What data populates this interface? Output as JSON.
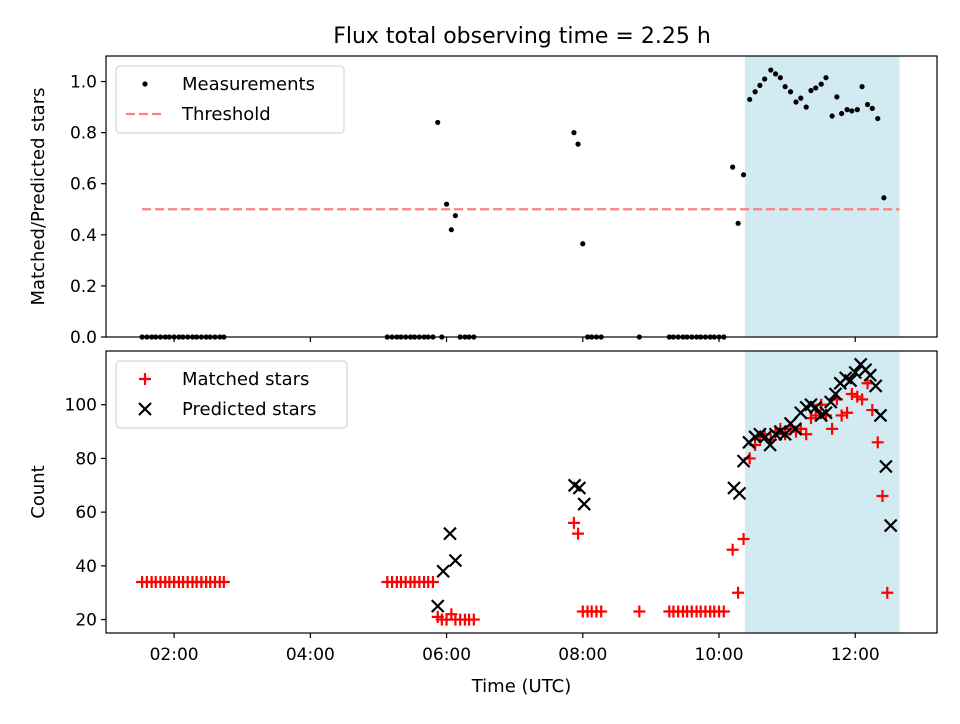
{
  "title": "Flux total observing time = 2.25 h",
  "colors": {
    "highlight": "#add8e6",
    "measurement": "#000000",
    "threshold": "#ff7f7f",
    "matched": "#ff0000",
    "predicted": "#000000"
  },
  "chart_data": [
    {
      "type": "scatter",
      "ylabel": "Matched/Predicted stars",
      "xlim": [
        1.0,
        13.2
      ],
      "ylim": [
        0,
        1.1
      ],
      "yticks": [
        0.0,
        0.2,
        0.4,
        0.6,
        0.8,
        1.0
      ],
      "ytick_labels": [
        "0.0",
        "0.2",
        "0.4",
        "0.6",
        "0.8",
        "1.0"
      ],
      "xticks": [
        2,
        4,
        6,
        8,
        10,
        12
      ],
      "shaded_span": [
        10.38,
        12.65
      ],
      "legend": {
        "placement": "upper left",
        "entries": [
          "Measurements",
          "Threshold"
        ]
      },
      "threshold": {
        "name": "Threshold",
        "value": 0.5,
        "x": [
          1.53,
          12.65
        ]
      },
      "series": [
        {
          "name": "Measurements",
          "marker": "dot",
          "points": [
            [
              1.53,
              0
            ],
            [
              1.6,
              0
            ],
            [
              1.67,
              0
            ],
            [
              1.73,
              0
            ],
            [
              1.8,
              0
            ],
            [
              1.87,
              0
            ],
            [
              1.93,
              0
            ],
            [
              2.0,
              0
            ],
            [
              2.07,
              0
            ],
            [
              2.13,
              0
            ],
            [
              2.2,
              0
            ],
            [
              2.27,
              0
            ],
            [
              2.33,
              0
            ],
            [
              2.4,
              0
            ],
            [
              2.47,
              0
            ],
            [
              2.53,
              0
            ],
            [
              2.6,
              0
            ],
            [
              2.67,
              0
            ],
            [
              2.73,
              0
            ],
            [
              5.13,
              0
            ],
            [
              5.2,
              0
            ],
            [
              5.27,
              0
            ],
            [
              5.33,
              0
            ],
            [
              5.4,
              0
            ],
            [
              5.47,
              0
            ],
            [
              5.53,
              0
            ],
            [
              5.6,
              0
            ],
            [
              5.67,
              0
            ],
            [
              5.73,
              0
            ],
            [
              5.8,
              0
            ],
            [
              5.87,
              0.84
            ],
            [
              5.93,
              0
            ],
            [
              6.0,
              0.52
            ],
            [
              6.07,
              0.42
            ],
            [
              6.13,
              0.475
            ],
            [
              6.2,
              0
            ],
            [
              6.27,
              0
            ],
            [
              6.33,
              0
            ],
            [
              6.4,
              0
            ],
            [
              7.87,
              0.8
            ],
            [
              7.93,
              0.755
            ],
            [
              8.0,
              0.365
            ],
            [
              8.07,
              0
            ],
            [
              8.13,
              0
            ],
            [
              8.2,
              0
            ],
            [
              8.27,
              0
            ],
            [
              8.83,
              0
            ],
            [
              9.27,
              0
            ],
            [
              9.33,
              0
            ],
            [
              9.4,
              0
            ],
            [
              9.47,
              0
            ],
            [
              9.53,
              0
            ],
            [
              9.6,
              0
            ],
            [
              9.67,
              0
            ],
            [
              9.73,
              0
            ],
            [
              9.8,
              0
            ],
            [
              9.87,
              0
            ],
            [
              9.93,
              0
            ],
            [
              10.0,
              0
            ],
            [
              10.07,
              0
            ],
            [
              10.2,
              0.665
            ],
            [
              10.28,
              0.445
            ],
            [
              10.36,
              0.635
            ],
            [
              10.45,
              0.93
            ],
            [
              10.53,
              0.96
            ],
            [
              10.6,
              0.985
            ],
            [
              10.67,
              1.01
            ],
            [
              10.76,
              1.045
            ],
            [
              10.83,
              1.03
            ],
            [
              10.9,
              1.015
            ],
            [
              10.97,
              0.98
            ],
            [
              11.05,
              0.96
            ],
            [
              11.13,
              0.92
            ],
            [
              11.2,
              0.935
            ],
            [
              11.28,
              0.9
            ],
            [
              11.35,
              0.965
            ],
            [
              11.42,
              0.975
            ],
            [
              11.5,
              0.99
            ],
            [
              11.57,
              1.015
            ],
            [
              11.66,
              0.865
            ],
            [
              11.73,
              0.94
            ],
            [
              11.8,
              0.875
            ],
            [
              11.88,
              0.89
            ],
            [
              11.95,
              0.885
            ],
            [
              12.03,
              0.89
            ],
            [
              12.1,
              0.98
            ],
            [
              12.18,
              0.91
            ],
            [
              12.25,
              0.895
            ],
            [
              12.33,
              0.855
            ],
            [
              12.42,
              0.545
            ]
          ]
        }
      ]
    },
    {
      "type": "scatter",
      "ylabel": "Count",
      "xlabel": "Time (UTC)",
      "xlim": [
        1.0,
        13.2
      ],
      "ylim": [
        15,
        120
      ],
      "yticks": [
        20,
        40,
        60,
        80,
        100
      ],
      "ytick_labels": [
        "20",
        "40",
        "60",
        "80",
        "100"
      ],
      "xticks": [
        2,
        4,
        6,
        8,
        10,
        12
      ],
      "xtick_labels": [
        "02:00",
        "04:00",
        "06:00",
        "08:00",
        "10:00",
        "12:00"
      ],
      "shaded_span": [
        10.38,
        12.65
      ],
      "legend": {
        "placement": "upper left",
        "entries": [
          "Matched stars",
          "Predicted stars"
        ]
      },
      "series": [
        {
          "name": "Matched stars",
          "marker": "plus",
          "points": [
            [
              1.53,
              34
            ],
            [
              1.6,
              34
            ],
            [
              1.67,
              34
            ],
            [
              1.73,
              34
            ],
            [
              1.8,
              34
            ],
            [
              1.87,
              34
            ],
            [
              1.93,
              34
            ],
            [
              2.0,
              34
            ],
            [
              2.07,
              34
            ],
            [
              2.13,
              34
            ],
            [
              2.2,
              34
            ],
            [
              2.27,
              34
            ],
            [
              2.33,
              34
            ],
            [
              2.4,
              34
            ],
            [
              2.47,
              34
            ],
            [
              2.53,
              34
            ],
            [
              2.6,
              34
            ],
            [
              2.67,
              34
            ],
            [
              2.73,
              34
            ],
            [
              5.13,
              34
            ],
            [
              5.2,
              34
            ],
            [
              5.27,
              34
            ],
            [
              5.33,
              34
            ],
            [
              5.4,
              34
            ],
            [
              5.47,
              34
            ],
            [
              5.53,
              34
            ],
            [
              5.6,
              34
            ],
            [
              5.67,
              34
            ],
            [
              5.73,
              34
            ],
            [
              5.8,
              34
            ],
            [
              5.87,
              21
            ],
            [
              5.93,
              20
            ],
            [
              6.0,
              20
            ],
            [
              6.07,
              22
            ],
            [
              6.13,
              20
            ],
            [
              6.2,
              20
            ],
            [
              6.27,
              20
            ],
            [
              6.33,
              20
            ],
            [
              6.4,
              20
            ],
            [
              7.87,
              56
            ],
            [
              7.93,
              52
            ],
            [
              8.0,
              23
            ],
            [
              8.07,
              23
            ],
            [
              8.13,
              23
            ],
            [
              8.2,
              23
            ],
            [
              8.27,
              23
            ],
            [
              8.83,
              23
            ],
            [
              9.27,
              23
            ],
            [
              9.33,
              23
            ],
            [
              9.4,
              23
            ],
            [
              9.47,
              23
            ],
            [
              9.53,
              23
            ],
            [
              9.6,
              23
            ],
            [
              9.67,
              23
            ],
            [
              9.73,
              23
            ],
            [
              9.8,
              23
            ],
            [
              9.87,
              23
            ],
            [
              9.93,
              23
            ],
            [
              10.0,
              23
            ],
            [
              10.07,
              23
            ],
            [
              10.2,
              46
            ],
            [
              10.28,
              30
            ],
            [
              10.36,
              50
            ],
            [
              10.45,
              80
            ],
            [
              10.53,
              85
            ],
            [
              10.6,
              88
            ],
            [
              10.67,
              89
            ],
            [
              10.76,
              87
            ],
            [
              10.83,
              90
            ],
            [
              10.9,
              91
            ],
            [
              10.97,
              89
            ],
            [
              11.05,
              91
            ],
            [
              11.13,
              90
            ],
            [
              11.2,
              91
            ],
            [
              11.28,
              89
            ],
            [
              11.35,
              95
            ],
            [
              11.42,
              96
            ],
            [
              11.5,
              100
            ],
            [
              11.57,
              96
            ],
            [
              11.66,
              91
            ],
            [
              11.73,
              102
            ],
            [
              11.8,
              96
            ],
            [
              11.88,
              97
            ],
            [
              11.95,
              104
            ],
            [
              12.03,
              103
            ],
            [
              12.1,
              102
            ],
            [
              12.18,
              108
            ],
            [
              12.25,
              98
            ],
            [
              12.33,
              86
            ],
            [
              12.4,
              66
            ],
            [
              12.47,
              30
            ]
          ]
        },
        {
          "name": "Predicted stars",
          "marker": "x",
          "points": [
            [
              5.87,
              25
            ],
            [
              5.95,
              38
            ],
            [
              6.05,
              52
            ],
            [
              6.13,
              42
            ],
            [
              7.88,
              70
            ],
            [
              7.95,
              69
            ],
            [
              8.02,
              63
            ],
            [
              10.22,
              69
            ],
            [
              10.3,
              67
            ],
            [
              10.36,
              79
            ],
            [
              10.44,
              86
            ],
            [
              10.53,
              88
            ],
            [
              10.6,
              89
            ],
            [
              10.68,
              88
            ],
            [
              10.75,
              85
            ],
            [
              10.83,
              89
            ],
            [
              10.9,
              90
            ],
            [
              10.97,
              89
            ],
            [
              11.05,
              93
            ],
            [
              11.12,
              91
            ],
            [
              11.2,
              97
            ],
            [
              11.28,
              99
            ],
            [
              11.35,
              100
            ],
            [
              11.42,
              99
            ],
            [
              11.5,
              96
            ],
            [
              11.57,
              97
            ],
            [
              11.64,
              101
            ],
            [
              11.71,
              104
            ],
            [
              11.78,
              108
            ],
            [
              11.86,
              110
            ],
            [
              11.93,
              109
            ],
            [
              12.0,
              112
            ],
            [
              12.08,
              115
            ],
            [
              12.15,
              113
            ],
            [
              12.22,
              111
            ],
            [
              12.3,
              107
            ],
            [
              12.37,
              96
            ],
            [
              12.45,
              77
            ],
            [
              12.52,
              55
            ]
          ]
        }
      ]
    }
  ]
}
